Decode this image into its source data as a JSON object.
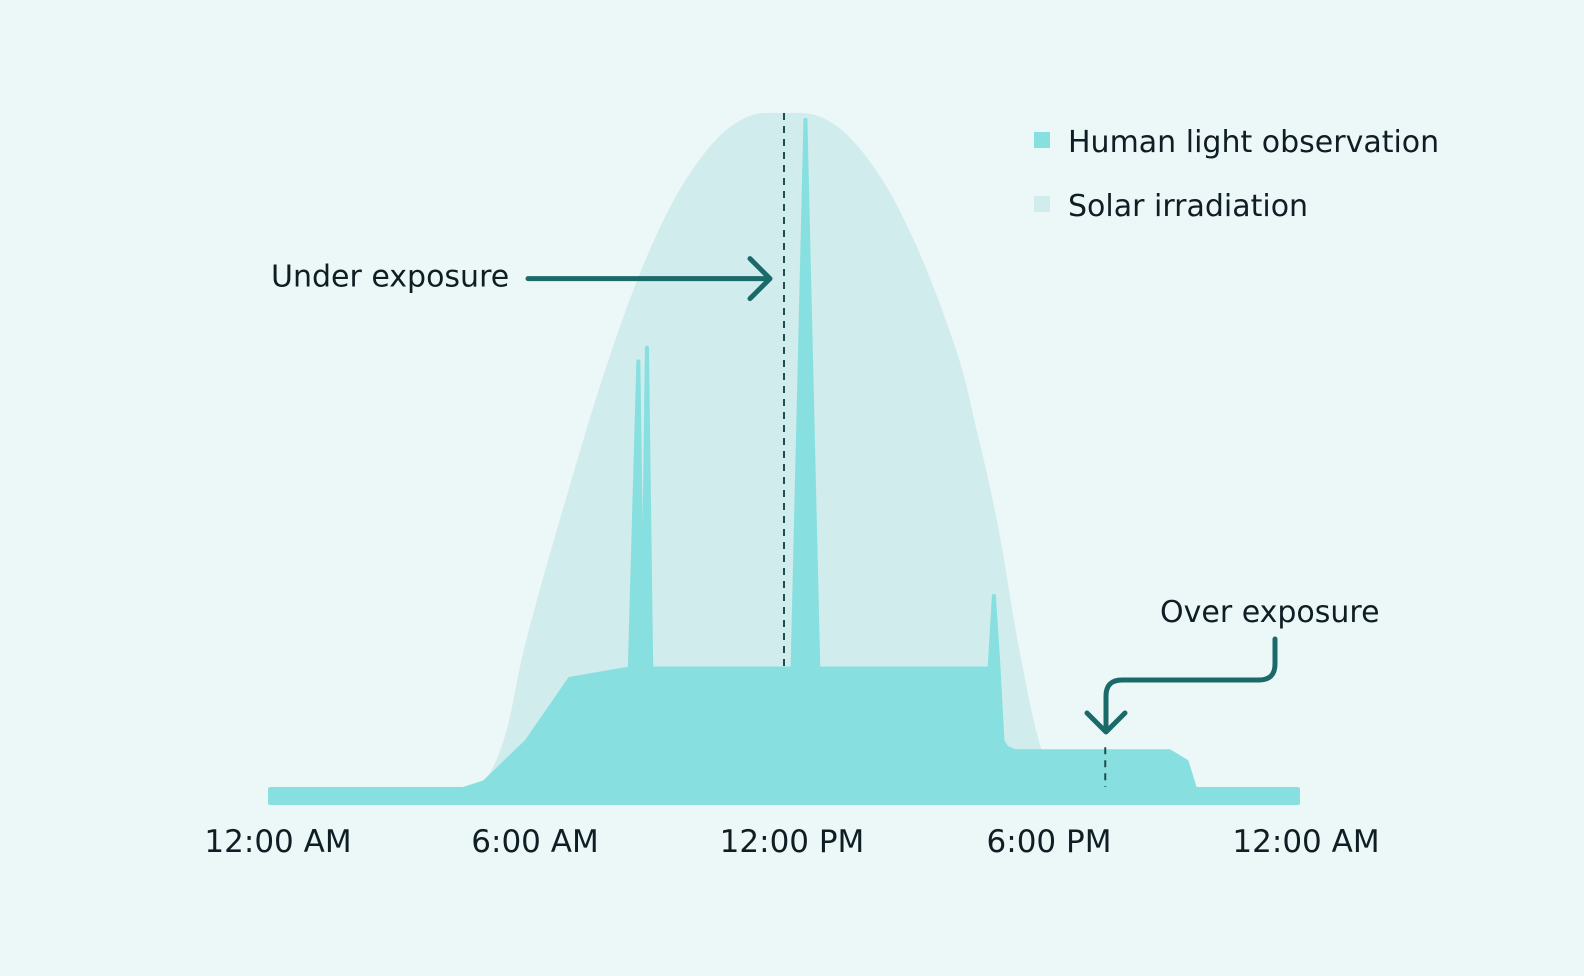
{
  "chart_data": {
    "type": "area",
    "title": "",
    "xlabel": "",
    "ylabel": "",
    "x_unit": "hours since midnight",
    "xlim": [
      0,
      24
    ],
    "ylim": [
      0,
      100
    ],
    "grid": false,
    "legend_position": "top-right",
    "x_ticks": [
      {
        "value": 0,
        "label": "12:00 AM"
      },
      {
        "value": 6,
        "label": "6:00 AM"
      },
      {
        "value": 12,
        "label": "12:00 PM"
      },
      {
        "value": 18,
        "label": "6:00 PM"
      },
      {
        "value": 24,
        "label": "12:00 AM"
      }
    ],
    "series": [
      {
        "name": "Solar irradiation",
        "color": "#d1ecec",
        "x": [
          0,
          4.5,
          5,
          5.5,
          6,
          7,
          8,
          9,
          10,
          11,
          12,
          13,
          14,
          15,
          16,
          16.5,
          17,
          17.5,
          18,
          18.5,
          19,
          20,
          21,
          22,
          23,
          24
        ],
        "y": [
          0,
          0,
          3,
          10,
          24,
          46,
          66,
          82,
          93,
          99,
          100,
          99,
          93,
          82,
          66,
          54,
          40,
          22,
          8,
          2,
          0,
          0,
          0,
          0,
          0,
          0
        ]
      },
      {
        "name": "Human light observation",
        "color": "#88dfdf",
        "x": [
          0,
          4.5,
          5,
          6,
          7,
          8.4,
          8.6,
          8.7,
          8.8,
          8.9,
          9.1,
          9.2,
          9.5,
          11,
          12,
          12.2,
          12.5,
          12.8,
          15,
          16.8,
          16.9,
          17.0,
          17.1,
          17.2,
          17.4,
          17.8,
          18,
          18.5,
          19,
          20,
          21,
          21.4,
          21.6,
          22,
          23,
          24
        ],
        "y": [
          2,
          2,
          3,
          9,
          18,
          19.5,
          64,
          19.5,
          66,
          19.5,
          19.5,
          19.5,
          19.5,
          19.5,
          19.5,
          19.5,
          99,
          19.5,
          19.5,
          19.5,
          30,
          20.5,
          9,
          8,
          7.5,
          7.5,
          7.5,
          7.5,
          7.5,
          7.5,
          7.5,
          6,
          2,
          2,
          2,
          2
        ]
      }
    ],
    "annotations": [
      {
        "text": "Under exposure",
        "target_x": 12,
        "target_y": 76
      },
      {
        "text": "Over exposure",
        "target_x": 19.5,
        "target_y": 7.5
      }
    ]
  },
  "colors": {
    "background": "#ecf8f7",
    "accent_dark": "#1b6a6a",
    "text": "#0f1e24"
  }
}
